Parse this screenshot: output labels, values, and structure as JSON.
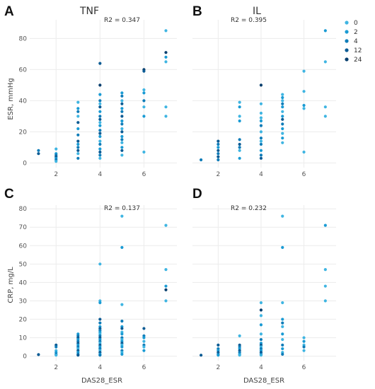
{
  "colors": {
    "0": "#3fb5e2",
    "2": "#1a9bd4",
    "4": "#0f7cb8",
    "12": "#0b5b94",
    "24": "#083f6e",
    "grid": "#ececec"
  },
  "legend": [
    "0",
    "2",
    "4",
    "12",
    "24"
  ],
  "panel_titles": {
    "left": "TNF",
    "right": "IL"
  },
  "xlabel": "DAS28_ESR",
  "chart_data": [
    {
      "type": "scatter",
      "panel_label": "A",
      "title": "TNF",
      "annotation": "R2 = 0.347",
      "xlabel": "",
      "ylabel": "ESR, mmHg",
      "xlim": [
        0.8,
        7.5
      ],
      "ylim": [
        -3,
        92
      ],
      "xticks": [
        2,
        4,
        6
      ],
      "yticks": [
        0,
        20,
        40,
        60,
        80
      ],
      "points": [
        [
          1.2,
          8,
          "4"
        ],
        [
          1.2,
          6,
          "12"
        ],
        [
          2,
          9,
          "0"
        ],
        [
          2,
          6,
          "2"
        ],
        [
          2,
          5,
          "4"
        ],
        [
          2,
          4,
          "12"
        ],
        [
          2,
          3,
          "2"
        ],
        [
          2,
          2,
          "4"
        ],
        [
          2,
          1,
          "0"
        ],
        [
          3,
          39,
          "0"
        ],
        [
          3,
          35,
          "2"
        ],
        [
          3,
          33,
          "4"
        ],
        [
          3,
          30,
          "0"
        ],
        [
          3,
          26,
          "12"
        ],
        [
          3,
          22,
          "2"
        ],
        [
          3,
          18,
          "4"
        ],
        [
          3,
          14,
          "12"
        ],
        [
          3,
          12,
          "2"
        ],
        [
          3,
          10,
          "4"
        ],
        [
          3,
          8,
          "12"
        ],
        [
          3,
          6,
          "0"
        ],
        [
          3,
          3,
          "4"
        ],
        [
          4,
          64,
          "12"
        ],
        [
          4,
          50,
          "24"
        ],
        [
          4,
          44,
          "2"
        ],
        [
          4,
          40,
          "4"
        ],
        [
          4,
          38,
          "0"
        ],
        [
          4,
          36,
          "12"
        ],
        [
          4,
          33,
          "2"
        ],
        [
          4,
          30,
          "4"
        ],
        [
          4,
          28,
          "12"
        ],
        [
          4,
          26,
          "0"
        ],
        [
          4,
          24,
          "2"
        ],
        [
          4,
          21,
          "4"
        ],
        [
          4,
          19,
          "12"
        ],
        [
          4,
          17,
          "2"
        ],
        [
          4,
          14,
          "0"
        ],
        [
          4,
          12,
          "4"
        ],
        [
          4,
          9,
          "2"
        ],
        [
          4,
          7,
          "12"
        ],
        [
          4,
          5,
          "4"
        ],
        [
          4,
          3,
          "0"
        ],
        [
          5,
          45,
          "2"
        ],
        [
          5,
          43,
          "4"
        ],
        [
          5,
          40,
          "0"
        ],
        [
          5,
          38,
          "12"
        ],
        [
          5,
          35,
          "2"
        ],
        [
          5,
          33,
          "4"
        ],
        [
          5,
          30,
          "12"
        ],
        [
          5,
          27,
          "2"
        ],
        [
          5,
          25,
          "4"
        ],
        [
          5,
          22,
          "0"
        ],
        [
          5,
          20,
          "12"
        ],
        [
          5,
          17,
          "2"
        ],
        [
          5,
          15,
          "4"
        ],
        [
          5,
          13,
          "0"
        ],
        [
          5,
          10,
          "2"
        ],
        [
          5,
          8,
          "12"
        ],
        [
          5,
          5,
          "0"
        ],
        [
          6,
          60,
          "24"
        ],
        [
          6,
          59,
          "12"
        ],
        [
          6,
          47,
          "0"
        ],
        [
          6,
          45,
          "2"
        ],
        [
          6,
          40,
          "4"
        ],
        [
          6,
          36,
          "0"
        ],
        [
          6,
          30,
          "2"
        ],
        [
          6,
          7,
          "0"
        ],
        [
          7,
          85,
          "0"
        ],
        [
          7,
          71,
          "24"
        ],
        [
          7,
          68,
          "2"
        ],
        [
          7,
          65,
          "0"
        ],
        [
          7,
          36,
          "0"
        ],
        [
          7,
          30,
          "0"
        ]
      ]
    },
    {
      "type": "scatter",
      "panel_label": "B",
      "title": "IL",
      "annotation": "R2 = 0.395",
      "xlabel": "",
      "ylabel": "",
      "xlim": [
        0.8,
        7.5
      ],
      "ylim": [
        -3,
        92
      ],
      "xticks": [
        2,
        4,
        6
      ],
      "yticks": [
        0,
        20,
        40,
        60,
        80
      ],
      "points": [
        [
          1.2,
          2,
          "4"
        ],
        [
          2,
          14,
          "12"
        ],
        [
          2,
          12,
          "4"
        ],
        [
          2,
          10,
          "2"
        ],
        [
          2,
          8,
          "12"
        ],
        [
          2,
          6,
          "4"
        ],
        [
          2,
          4,
          "12"
        ],
        [
          2,
          2,
          "4"
        ],
        [
          3,
          39,
          "0"
        ],
        [
          3,
          36,
          "2"
        ],
        [
          3,
          30,
          "0"
        ],
        [
          3,
          27,
          "2"
        ],
        [
          3,
          15,
          "4"
        ],
        [
          3,
          12,
          "12"
        ],
        [
          3,
          10,
          "4"
        ],
        [
          3,
          8,
          "0"
        ],
        [
          3,
          3,
          "2"
        ],
        [
          4,
          50,
          "24"
        ],
        [
          4,
          38,
          "0"
        ],
        [
          4,
          32,
          "0"
        ],
        [
          4,
          29,
          "0"
        ],
        [
          4,
          27,
          "2"
        ],
        [
          4,
          24,
          "4"
        ],
        [
          4,
          20,
          "0"
        ],
        [
          4,
          16,
          "4"
        ],
        [
          4,
          14,
          "0"
        ],
        [
          4,
          12,
          "4"
        ],
        [
          4,
          8,
          "2"
        ],
        [
          4,
          5,
          "4"
        ],
        [
          4,
          3,
          "12"
        ],
        [
          5,
          44,
          "0"
        ],
        [
          5,
          42,
          "2"
        ],
        [
          5,
          40,
          "0"
        ],
        [
          5,
          38,
          "4"
        ],
        [
          5,
          36,
          "2"
        ],
        [
          5,
          33,
          "0"
        ],
        [
          5,
          30,
          "2"
        ],
        [
          5,
          28,
          "12"
        ],
        [
          5,
          25,
          "4"
        ],
        [
          5,
          22,
          "2"
        ],
        [
          5,
          19,
          "0"
        ],
        [
          5,
          16,
          "2"
        ],
        [
          5,
          13,
          "0"
        ],
        [
          6,
          59,
          "0"
        ],
        [
          6,
          46,
          "0"
        ],
        [
          6,
          37,
          "2"
        ],
        [
          6,
          35,
          "0"
        ],
        [
          6,
          7,
          "0"
        ],
        [
          7,
          85,
          "2"
        ],
        [
          7,
          65,
          "0"
        ],
        [
          7,
          36,
          "0"
        ],
        [
          7,
          30,
          "0"
        ]
      ]
    },
    {
      "type": "scatter",
      "panel_label": "C",
      "title": "",
      "annotation": "R2 = 0.137",
      "xlabel": "DAS28_ESR",
      "ylabel": "CRP, mg/L",
      "xlim": [
        0.8,
        7.5
      ],
      "ylim": [
        -2.5,
        82
      ],
      "xticks": [
        2,
        4,
        6
      ],
      "yticks": [
        0,
        10,
        20,
        30,
        40,
        50,
        60,
        70,
        80
      ],
      "points": [
        [
          1.2,
          0.8,
          "12"
        ],
        [
          2,
          6,
          "12"
        ],
        [
          2,
          5,
          "4"
        ],
        [
          2,
          3,
          "0"
        ],
        [
          2,
          2,
          "2"
        ],
        [
          2,
          1,
          "4"
        ],
        [
          2,
          0.5,
          "0"
        ],
        [
          3,
          12,
          "2"
        ],
        [
          3,
          11,
          "4"
        ],
        [
          3,
          10,
          "12"
        ],
        [
          3,
          9,
          "2"
        ],
        [
          3,
          8,
          "4"
        ],
        [
          3,
          7,
          "12"
        ],
        [
          3,
          6,
          "2"
        ],
        [
          3,
          5,
          "4"
        ],
        [
          3,
          4,
          "0"
        ],
        [
          3,
          3,
          "12"
        ],
        [
          3,
          2,
          "2"
        ],
        [
          3,
          1,
          "4"
        ],
        [
          3,
          0.5,
          "12"
        ],
        [
          4,
          50,
          "0"
        ],
        [
          4,
          30,
          "0"
        ],
        [
          4,
          29,
          "2"
        ],
        [
          4,
          20,
          "12"
        ],
        [
          4,
          18,
          "4"
        ],
        [
          4,
          16,
          "2"
        ],
        [
          4,
          15,
          "12"
        ],
        [
          4,
          14,
          "4"
        ],
        [
          4,
          13,
          "2"
        ],
        [
          4,
          12,
          "0"
        ],
        [
          4,
          11,
          "4"
        ],
        [
          4,
          10,
          "12"
        ],
        [
          4,
          9,
          "2"
        ],
        [
          4,
          8,
          "4"
        ],
        [
          4,
          7,
          "0"
        ],
        [
          4,
          6,
          "12"
        ],
        [
          4,
          5,
          "2"
        ],
        [
          4,
          4,
          "4"
        ],
        [
          4,
          3,
          "0"
        ],
        [
          4,
          2,
          "12"
        ],
        [
          4,
          1,
          "2"
        ],
        [
          4,
          0.5,
          "4"
        ],
        [
          5,
          76,
          "0"
        ],
        [
          5,
          59,
          "2"
        ],
        [
          5,
          28,
          "0"
        ],
        [
          5,
          19,
          "4"
        ],
        [
          5,
          16,
          "2"
        ],
        [
          5,
          15,
          "12"
        ],
        [
          5,
          13,
          "0"
        ],
        [
          5,
          12,
          "2"
        ],
        [
          5,
          10,
          "4"
        ],
        [
          5,
          9,
          "0"
        ],
        [
          5,
          8,
          "2"
        ],
        [
          5,
          7,
          "12"
        ],
        [
          5,
          6,
          "0"
        ],
        [
          5,
          5,
          "2"
        ],
        [
          5,
          3,
          "4"
        ],
        [
          5,
          2,
          "0"
        ],
        [
          5,
          1,
          "2"
        ],
        [
          6,
          15,
          "12"
        ],
        [
          6,
          11,
          "4"
        ],
        [
          6,
          10,
          "2"
        ],
        [
          6,
          8,
          "0"
        ],
        [
          6,
          6,
          "4"
        ],
        [
          6,
          5,
          "0"
        ],
        [
          6,
          3,
          "2"
        ],
        [
          7,
          71,
          "0"
        ],
        [
          7,
          47,
          "0"
        ],
        [
          7,
          38,
          "2"
        ],
        [
          7,
          36,
          "24"
        ],
        [
          7,
          30,
          "0"
        ]
      ]
    },
    {
      "type": "scatter",
      "panel_label": "D",
      "title": "",
      "annotation": "R2 = 0.232",
      "xlabel": "DAS28_ESR",
      "ylabel": "",
      "xlim": [
        0.8,
        7.5
      ],
      "ylim": [
        -2.5,
        82
      ],
      "xticks": [
        2,
        4,
        6
      ],
      "yticks": [
        0,
        10,
        20,
        30,
        40,
        50,
        60,
        70,
        80
      ],
      "points": [
        [
          1.2,
          0.5,
          "12"
        ],
        [
          2,
          6,
          "12"
        ],
        [
          2,
          4,
          "4"
        ],
        [
          2,
          3,
          "2"
        ],
        [
          2,
          2,
          "12"
        ],
        [
          2,
          1,
          "4"
        ],
        [
          2,
          0.5,
          "2"
        ],
        [
          3,
          11,
          "0"
        ],
        [
          3,
          6,
          "12"
        ],
        [
          3,
          5,
          "4"
        ],
        [
          3,
          4,
          "2"
        ],
        [
          3,
          3,
          "12"
        ],
        [
          3,
          2,
          "4"
        ],
        [
          3,
          1,
          "2"
        ],
        [
          3,
          0.5,
          "0"
        ],
        [
          4,
          29,
          "0"
        ],
        [
          4,
          25,
          "24"
        ],
        [
          4,
          22,
          "0"
        ],
        [
          4,
          17,
          "2"
        ],
        [
          4,
          12,
          "0"
        ],
        [
          4,
          9,
          "4"
        ],
        [
          4,
          7,
          "2"
        ],
        [
          4,
          6,
          "12"
        ],
        [
          4,
          5,
          "0"
        ],
        [
          4,
          4,
          "4"
        ],
        [
          4,
          3,
          "2"
        ],
        [
          4,
          2,
          "12"
        ],
        [
          4,
          1,
          "4"
        ],
        [
          4,
          0.5,
          "0"
        ],
        [
          5,
          76,
          "0"
        ],
        [
          5,
          59,
          "2"
        ],
        [
          5,
          29,
          "0"
        ],
        [
          5,
          20,
          "2"
        ],
        [
          5,
          18,
          "4"
        ],
        [
          5,
          16,
          "0"
        ],
        [
          5,
          12,
          "2"
        ],
        [
          5,
          9,
          "0"
        ],
        [
          5,
          6,
          "4"
        ],
        [
          5,
          4,
          "2"
        ],
        [
          5,
          2,
          "0"
        ],
        [
          5,
          1,
          "4"
        ],
        [
          6,
          10,
          "0"
        ],
        [
          6,
          8,
          "2"
        ],
        [
          6,
          6,
          "0"
        ],
        [
          6,
          5,
          "4"
        ],
        [
          6,
          3,
          "0"
        ],
        [
          7,
          71,
          "2"
        ],
        [
          7,
          47,
          "0"
        ],
        [
          7,
          38,
          "0"
        ],
        [
          7,
          30,
          "0"
        ]
      ]
    }
  ]
}
